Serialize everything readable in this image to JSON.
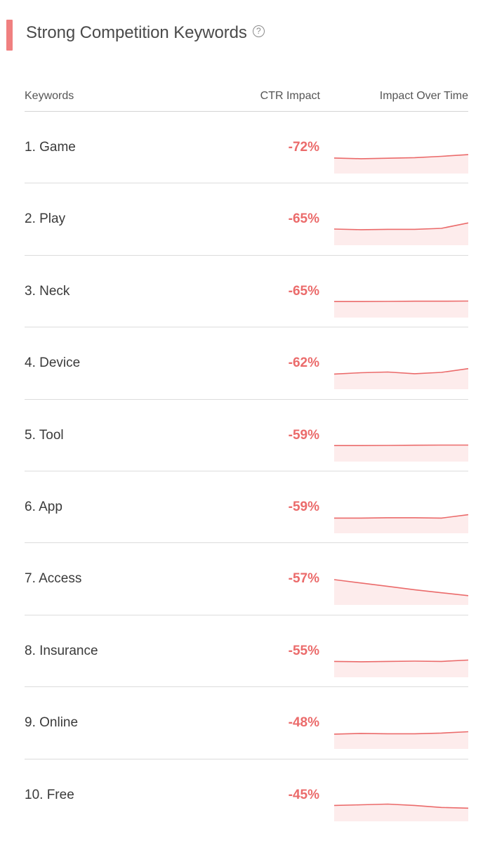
{
  "title": "Strong Competition Keywords",
  "help_icon": "question-circle-icon",
  "colors": {
    "accent": "#f08080",
    "negative": "#eb6b6b",
    "spark_fill": "#fdecec"
  },
  "columns": {
    "keywords": "Keywords",
    "ctr": "CTR Impact",
    "time": "Impact Over Time"
  },
  "rows": [
    {
      "keyword": "1. Game",
      "ctr": "-72%",
      "trend": [
        0.42,
        0.38,
        0.41,
        0.44,
        0.52,
        0.62
      ]
    },
    {
      "keyword": "2. Play",
      "ctr": "-65%",
      "trend": [
        0.46,
        0.42,
        0.44,
        0.44,
        0.5,
        0.82
      ]
    },
    {
      "keyword": "3. Neck",
      "ctr": "-65%",
      "trend": [
        0.45,
        0.45,
        0.46,
        0.47,
        0.47,
        0.48
      ]
    },
    {
      "keyword": "4. Device",
      "ctr": "-62%",
      "trend": [
        0.4,
        0.48,
        0.52,
        0.42,
        0.5,
        0.72
      ]
    },
    {
      "keyword": "5. Tool",
      "ctr": "-59%",
      "trend": [
        0.45,
        0.45,
        0.46,
        0.47,
        0.48,
        0.48
      ]
    },
    {
      "keyword": "6. App",
      "ctr": "-59%",
      "trend": [
        0.4,
        0.4,
        0.42,
        0.42,
        0.4,
        0.6
      ]
    },
    {
      "keyword": "7. Access",
      "ctr": "-57%",
      "trend": [
        1.0,
        0.8,
        0.6,
        0.4,
        0.22,
        0.05
      ]
    },
    {
      "keyword": "8. Insurance",
      "ctr": "-55%",
      "trend": [
        0.44,
        0.42,
        0.44,
        0.46,
        0.44,
        0.52
      ]
    },
    {
      "keyword": "9. Online",
      "ctr": "-48%",
      "trend": [
        0.38,
        0.42,
        0.4,
        0.4,
        0.44,
        0.52
      ]
    },
    {
      "keyword": "10. Free",
      "ctr": "-45%",
      "trend": [
        0.44,
        0.48,
        0.52,
        0.44,
        0.32,
        0.28
      ]
    }
  ]
}
